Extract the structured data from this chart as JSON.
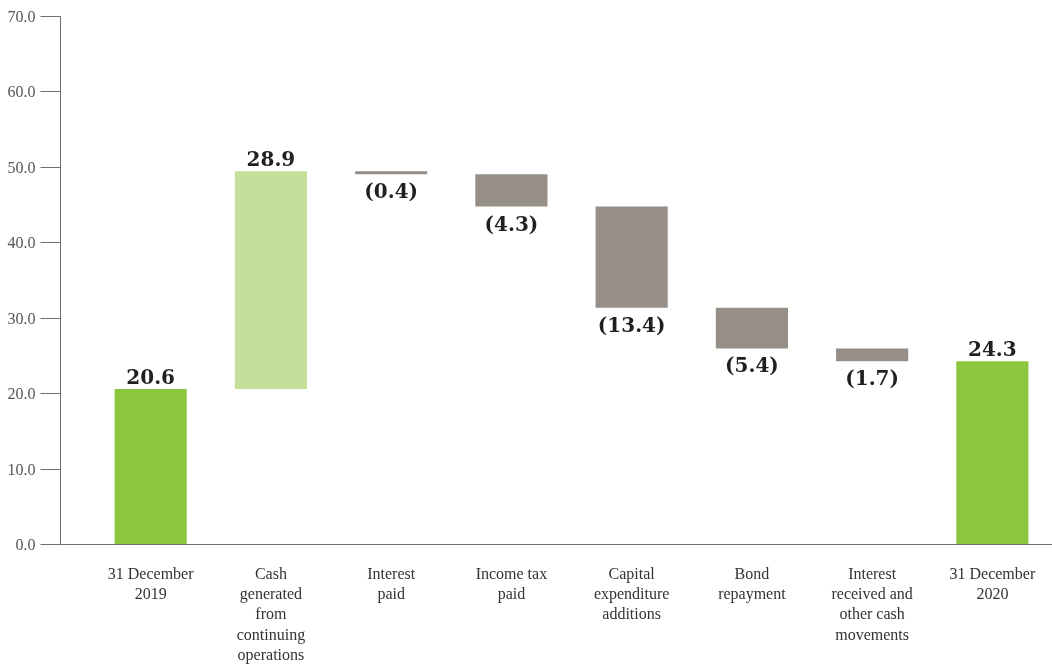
{
  "chart_data": {
    "type": "bar",
    "categories": [
      "31 December 2019",
      "Cash generated from continuing operations",
      "Interest paid",
      "Income tax paid",
      "Capital expenditure additions",
      "Bond repayment",
      "Interest received and other cash movements",
      "31 December 2020"
    ],
    "values": [
      20.6,
      28.9,
      -0.4,
      -4.3,
      -13.4,
      -5.4,
      -1.7,
      24.3
    ],
    "base": [
      0,
      20.6,
      49.5,
      49.1,
      44.8,
      31.4,
      26.0,
      0
    ],
    "colors": [
      "#8cc63f",
      "#c5df9b",
      "#958f87",
      "#958f87",
      "#958f87",
      "#958f87",
      "#958f87",
      "#8cc63f"
    ],
    "value_labels": [
      "20.6",
      "28.9",
      "(0.4)",
      "(4.3)",
      "(13.4)",
      "(5.4)",
      "(1.7)",
      "24.3"
    ],
    "ylim": [
      0,
      70
    ],
    "yticks": [
      {
        "value": 0,
        "label": "0.0"
      },
      {
        "value": 10,
        "label": "10.0"
      },
      {
        "value": 20,
        "label": "20.0"
      },
      {
        "value": 30,
        "label": "30.0"
      },
      {
        "value": 40,
        "label": "40.0"
      },
      {
        "value": 50,
        "label": "50.0"
      },
      {
        "value": 60,
        "label": "60.0"
      },
      {
        "value": 70,
        "label": "70.0"
      }
    ],
    "grid": false
  }
}
